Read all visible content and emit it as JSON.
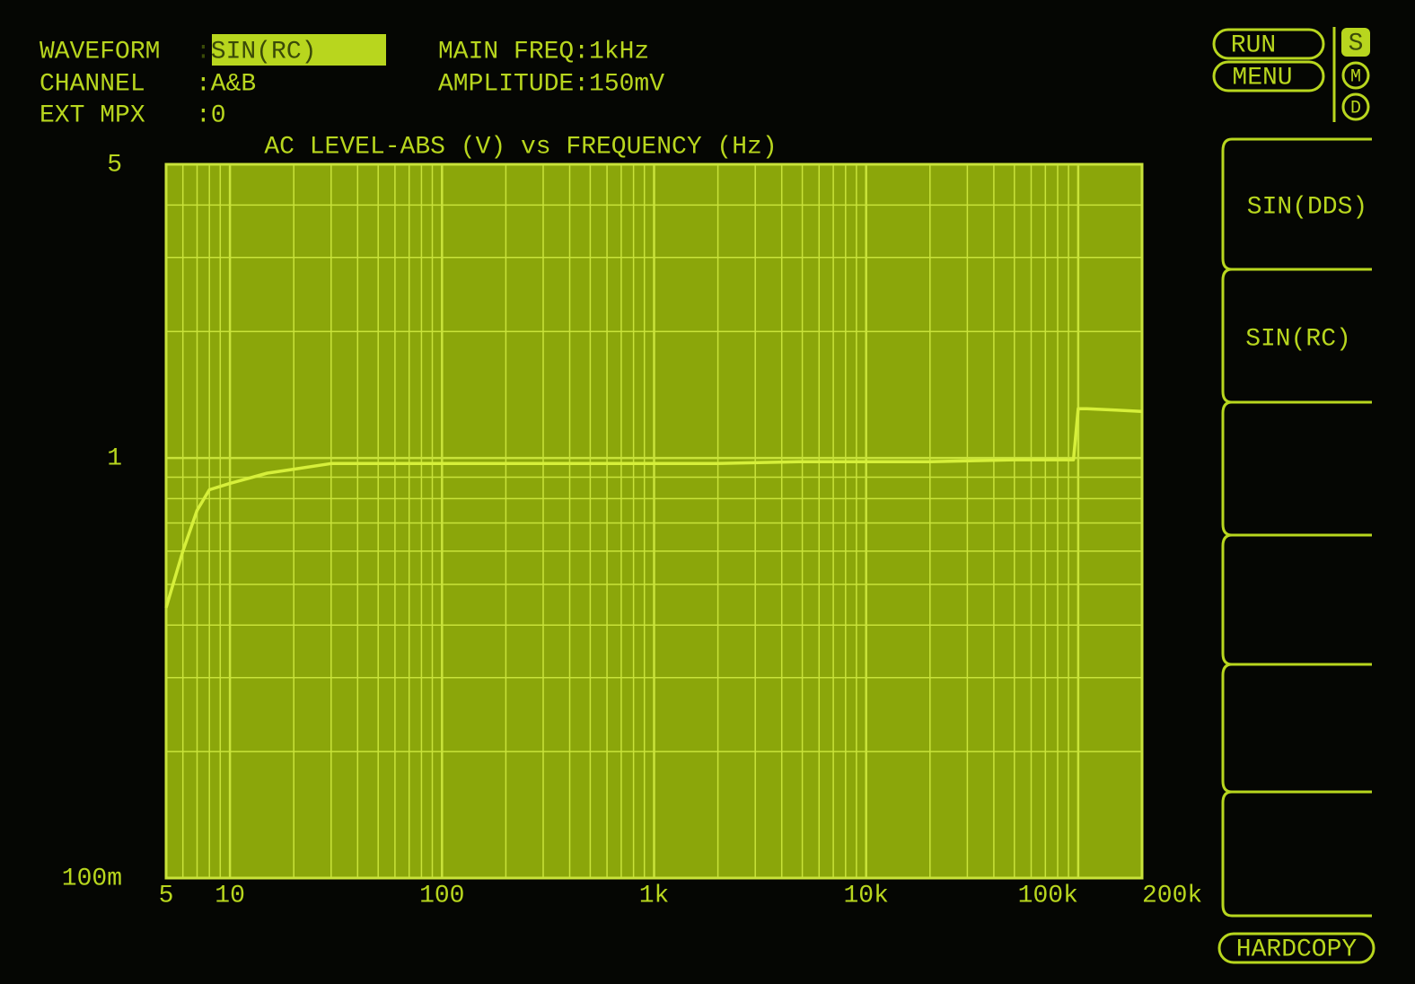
{
  "header": {
    "waveform_label": "WAVEFORM",
    "waveform_value": ":SIN(RC)",
    "channel_label": "CHANNEL",
    "channel_value": ":A&B",
    "ext_mpx_label": "EXT MPX",
    "ext_mpx_value": ":0",
    "main_freq": "MAIN FREQ:1kHz",
    "amplitude": "AMPLITUDE:150mV"
  },
  "controls": {
    "run": "RUN",
    "menu": "MENU",
    "modes": [
      "S",
      "M",
      "D"
    ],
    "softkeys": [
      "SIN(DDS)",
      "SIN(RC)"
    ],
    "hardcopy": "HARDCOPY"
  },
  "chart_data": {
    "type": "line",
    "title": "AC LEVEL-ABS (V) vs FREQUENCY (Hz)",
    "color": "#d6ef3a",
    "x": [
      5,
      6,
      7,
      8,
      10,
      15,
      20,
      30,
      50,
      100,
      200,
      500,
      1000,
      2000,
      5000,
      10000,
      20000,
      50000,
      80000,
      95000,
      100000,
      110000,
      150000,
      200000
    ],
    "values": [
      0.44,
      0.6,
      0.75,
      0.84,
      0.87,
      0.92,
      0.94,
      0.97,
      0.97,
      0.97,
      0.97,
      0.97,
      0.97,
      0.97,
      0.98,
      0.98,
      0.98,
      0.99,
      0.99,
      0.99,
      1.31,
      1.31,
      1.3,
      1.29
    ],
    "xlim": [
      5,
      200000
    ],
    "ylim": [
      0.1,
      5
    ],
    "xscale": "log",
    "yscale": "log",
    "grid": true,
    "xticks": [
      5,
      10,
      100,
      {
        "value": 1000,
        "label": "1k"
      },
      {
        "value": 10000,
        "label": "10k"
      },
      {
        "value": 100000,
        "label": "100k"
      },
      {
        "value": 200000,
        "label": "200k"
      }
    ],
    "yticks": [
      {
        "value": 0.1,
        "label": "100m"
      },
      1,
      5
    ]
  }
}
